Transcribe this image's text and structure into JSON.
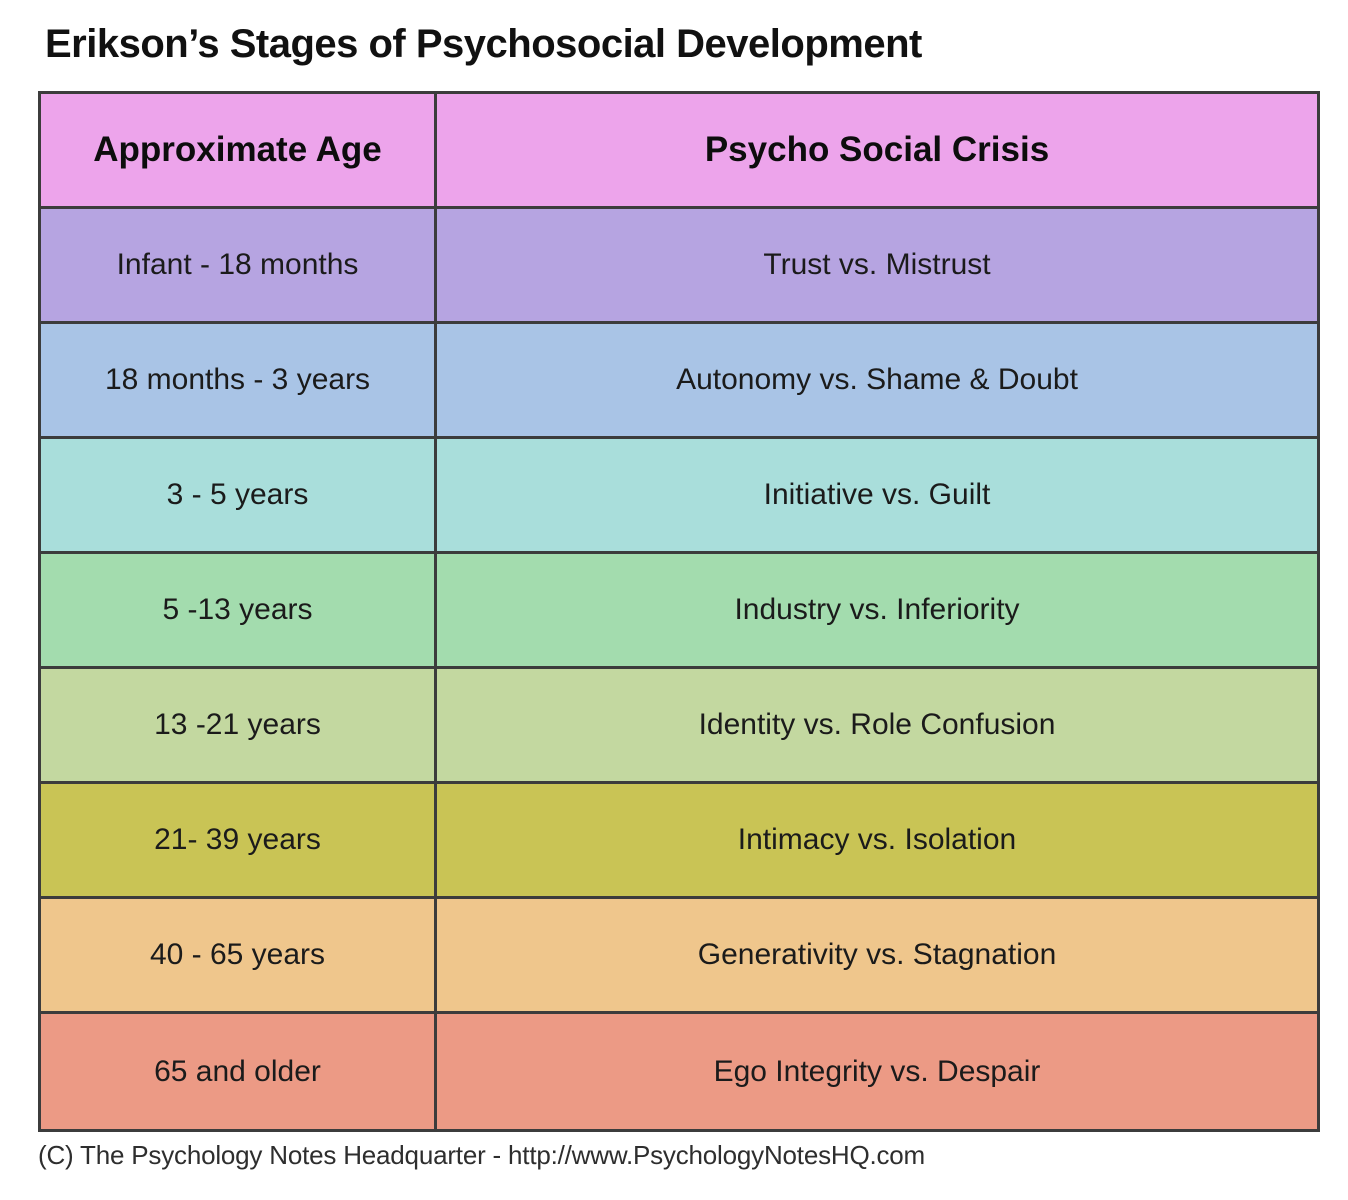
{
  "title": "Erikson’s Stages of Psychosocial Development",
  "table": {
    "header_bg": "#eda4eb",
    "headers": [
      "Approximate Age",
      "Psycho Social Crisis"
    ],
    "rows": [
      {
        "age": "Infant - 18 months",
        "crisis": "Trust vs. Mistrust",
        "bg": "#b6a4e1"
      },
      {
        "age": "18 months - 3 years",
        "crisis": "Autonomy vs. Shame & Doubt",
        "bg": "#a9c4e6"
      },
      {
        "age": "3 - 5 years",
        "crisis": "Initiative vs. Guilt",
        "bg": "#a9dedb"
      },
      {
        "age": "5 -13 years",
        "crisis": "Industry vs. Inferiority",
        "bg": "#a3dcae"
      },
      {
        "age": "13 -21 years",
        "crisis": "Identity vs. Role Confusion",
        "bg": "#c3d8a0"
      },
      {
        "age": "21- 39 years",
        "crisis": "Intimacy vs. Isolation",
        "bg": "#c9c455"
      },
      {
        "age": "40 - 65 years",
        "crisis": "Generativity vs. Stagnation",
        "bg": "#efc68c"
      },
      {
        "age": "65 and older",
        "crisis": "Ego Integrity vs. Despair",
        "bg": "#ec9a85"
      }
    ]
  },
  "footer": "(C) The Psychology Notes Headquarter - http://www.PsychologyNotesHQ.com"
}
